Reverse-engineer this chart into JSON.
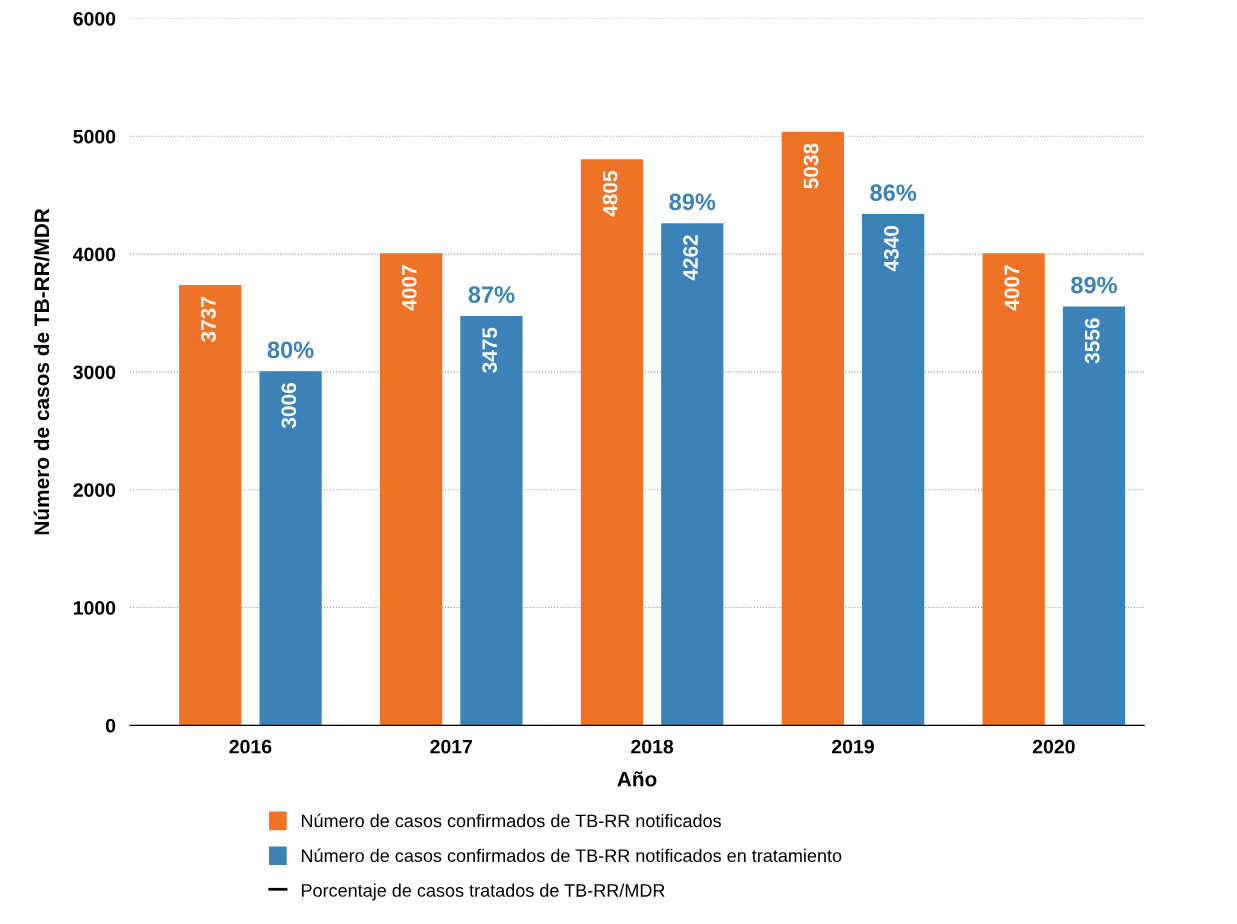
{
  "chart_data": {
    "type": "bar",
    "xlabel": "Año",
    "ylabel": "Número de casos de TB-RR/MDR",
    "categories": [
      "2016",
      "2017",
      "2018",
      "2019",
      "2020"
    ],
    "series": [
      {
        "name": "Número de casos confirmados de TB-RR notificados",
        "color": "#ee7326",
        "values": [
          3737,
          4007,
          4805,
          5038,
          4007
        ]
      },
      {
        "name": "Número de casos confirmados de TB-RR notificados en tratamiento",
        "color": "#3a82b8",
        "values": [
          3006,
          3475,
          4262,
          4340,
          3556
        ]
      },
      {
        "name": "Porcentaje de casos tratados de TB-RR/MDR",
        "type": "line",
        "color": "#000000",
        "values": [
          null,
          null,
          null,
          null,
          null
        ]
      }
    ],
    "annotations": [
      "80%",
      "87%",
      "89%",
      "86%",
      "89%"
    ],
    "data_labels": true,
    "ylim": [
      0,
      6000
    ],
    "yticks": [
      0,
      1000,
      2000,
      3000,
      4000,
      5000,
      6000
    ],
    "grid": "y",
    "legend": "bottom"
  }
}
